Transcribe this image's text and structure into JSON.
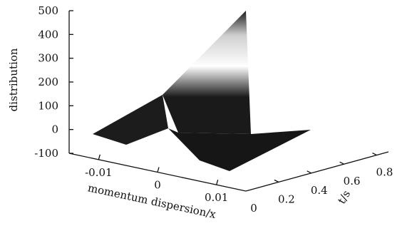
{
  "chart_data": {
    "type": "surface",
    "zlabel": "distribution",
    "xlabel": "momentum dispersion/x",
    "ylabel": "t/s",
    "z_ticks": [
      "500",
      "400",
      "300",
      "200",
      "100",
      "0",
      "-100"
    ],
    "x_ticks": [
      "-0.01",
      "0",
      "0.01"
    ],
    "y_ticks": [
      "0",
      "0.2",
      "0.4",
      "0.6",
      "0.8"
    ],
    "zlim": [
      -100,
      500
    ],
    "xlim": [
      -0.015,
      0.015
    ],
    "ylim": [
      0,
      0.8
    ],
    "peak_x": 0,
    "peak_value_at_tmax": 490,
    "base_value": 0,
    "colormap": [
      "#1a1a1a",
      "#ffffff",
      "#1a1a1a"
    ]
  }
}
